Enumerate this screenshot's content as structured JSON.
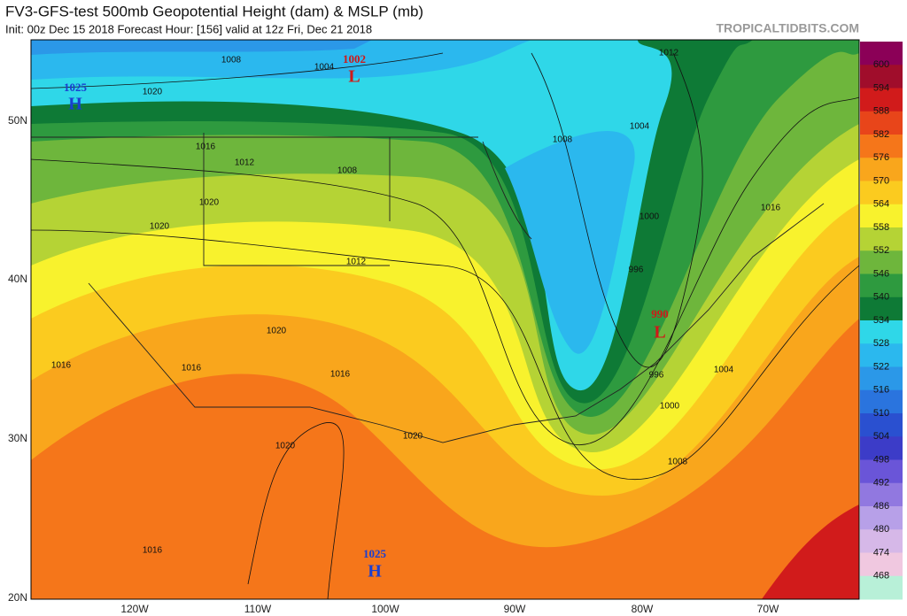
{
  "header": {
    "title": "FV3-GFS-test 500mb Geopotential Height (dam) & MSLP (mb)",
    "subtitle": "Init: 00z Dec 15 2018   Forecast Hour: [156]   valid at 12z Fri, Dec 21 2018"
  },
  "watermark": "TROPICALTIDBITS.COM",
  "colorbar": {
    "labels": [
      "600",
      "594",
      "588",
      "582",
      "576",
      "570",
      "564",
      "558",
      "552",
      "546",
      "540",
      "534",
      "528",
      "522",
      "516",
      "510",
      "504",
      "498",
      "492",
      "486",
      "480",
      "474",
      "468"
    ],
    "colors": [
      "#8b0057",
      "#a00d2b",
      "#d11b1b",
      "#e8451a",
      "#f5761a",
      "#f9a61c",
      "#fbcb1f",
      "#f8f22d",
      "#b5d335",
      "#6eb63c",
      "#2e9a3f",
      "#0e7a36",
      "#2fd7e8",
      "#2bb8ee",
      "#2b98e8",
      "#2a74de",
      "#2a50d0",
      "#3c3cc8",
      "#6a55d8",
      "#9178e0",
      "#b7a0e8",
      "#d6b8e8",
      "#f0c8e0",
      "#b8f0d8"
    ]
  },
  "axes": {
    "lat": [
      "50N",
      "40N",
      "30N",
      "20N"
    ],
    "lon": [
      "120W",
      "110W",
      "100W",
      "90W",
      "80W",
      "70W"
    ]
  },
  "centers": [
    {
      "value": "1025",
      "letter": "H"
    },
    {
      "value": "1002",
      "letter": "L"
    },
    {
      "value": "990",
      "letter": "L"
    },
    {
      "value": "1025",
      "letter": "H"
    }
  ],
  "contour_labels": [
    "1008",
    "1004",
    "1020",
    "1012",
    "1008",
    "1004",
    "1016",
    "1012",
    "1008",
    "1020",
    "1020",
    "1000",
    "1016",
    "1012",
    "996",
    "1020",
    "1016",
    "1016",
    "1016",
    "1004",
    "996",
    "1000",
    "1020",
    "1020",
    "1008",
    "1016"
  ]
}
